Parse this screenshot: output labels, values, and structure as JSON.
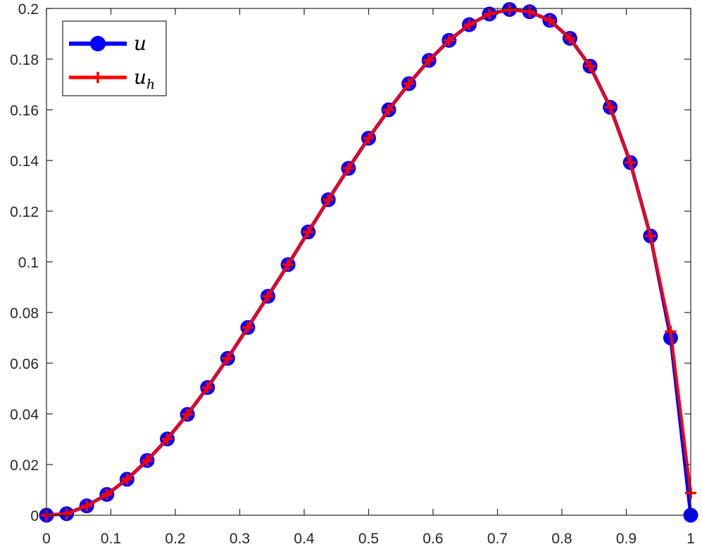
{
  "chart_data": {
    "type": "line",
    "title": "",
    "xlabel": "",
    "ylabel": "",
    "xlim": [
      0,
      1
    ],
    "ylim": [
      0,
      0.2
    ],
    "grid": false,
    "legend_position": "top-left",
    "x_ticks": [
      "0",
      "0.1",
      "0.2",
      "0.3",
      "0.4",
      "0.5",
      "0.6",
      "0.7",
      "0.8",
      "0.9",
      "1"
    ],
    "y_ticks": [
      "0",
      "0.02",
      "0.04",
      "0.06",
      "0.08",
      "0.1",
      "0.12",
      "0.14",
      "0.16",
      "0.18",
      "0.2"
    ],
    "x": [
      0,
      0.03125,
      0.0625,
      0.09375,
      0.125,
      0.15625,
      0.1875,
      0.21875,
      0.25,
      0.28125,
      0.3125,
      0.34375,
      0.375,
      0.40625,
      0.4375,
      0.46875,
      0.5,
      0.53125,
      0.5625,
      0.59375,
      0.625,
      0.65625,
      0.6875,
      0.71875,
      0.75,
      0.78125,
      0.8125,
      0.84375,
      0.875,
      0.90625,
      0.9375,
      0.96875,
      1
    ],
    "series": [
      {
        "name": "u",
        "color": "#0000ff",
        "marker": "circle",
        "values": [
          0,
          0.0006,
          0.0037,
          0.0082,
          0.0142,
          0.0216,
          0.0301,
          0.0398,
          0.0504,
          0.0619,
          0.0741,
          0.0864,
          0.0989,
          0.1118,
          0.1245,
          0.1369,
          0.1488,
          0.16,
          0.1703,
          0.1795,
          0.1874,
          0.1936,
          0.1978,
          0.1996,
          0.1987,
          0.1953,
          0.1882,
          0.1772,
          0.161,
          0.1392,
          0.1102,
          0.07,
          0
        ]
      },
      {
        "name": "u_h",
        "color": "#ff0000",
        "marker": "plus",
        "values": [
          0,
          0.0006,
          0.0037,
          0.0082,
          0.0142,
          0.0216,
          0.0301,
          0.0398,
          0.0504,
          0.0619,
          0.0741,
          0.0864,
          0.0989,
          0.1118,
          0.1245,
          0.1369,
          0.1488,
          0.16,
          0.1703,
          0.1795,
          0.1874,
          0.1936,
          0.1978,
          0.1996,
          0.1987,
          0.1953,
          0.1882,
          0.1772,
          0.161,
          0.1392,
          0.1102,
          0.0725,
          0.0088
        ]
      }
    ]
  },
  "legend": {
    "items": [
      {
        "label": "u",
        "sub": "",
        "color": "#0000ff"
      },
      {
        "label": "u",
        "sub": "h",
        "color": "#ff0000"
      }
    ]
  }
}
